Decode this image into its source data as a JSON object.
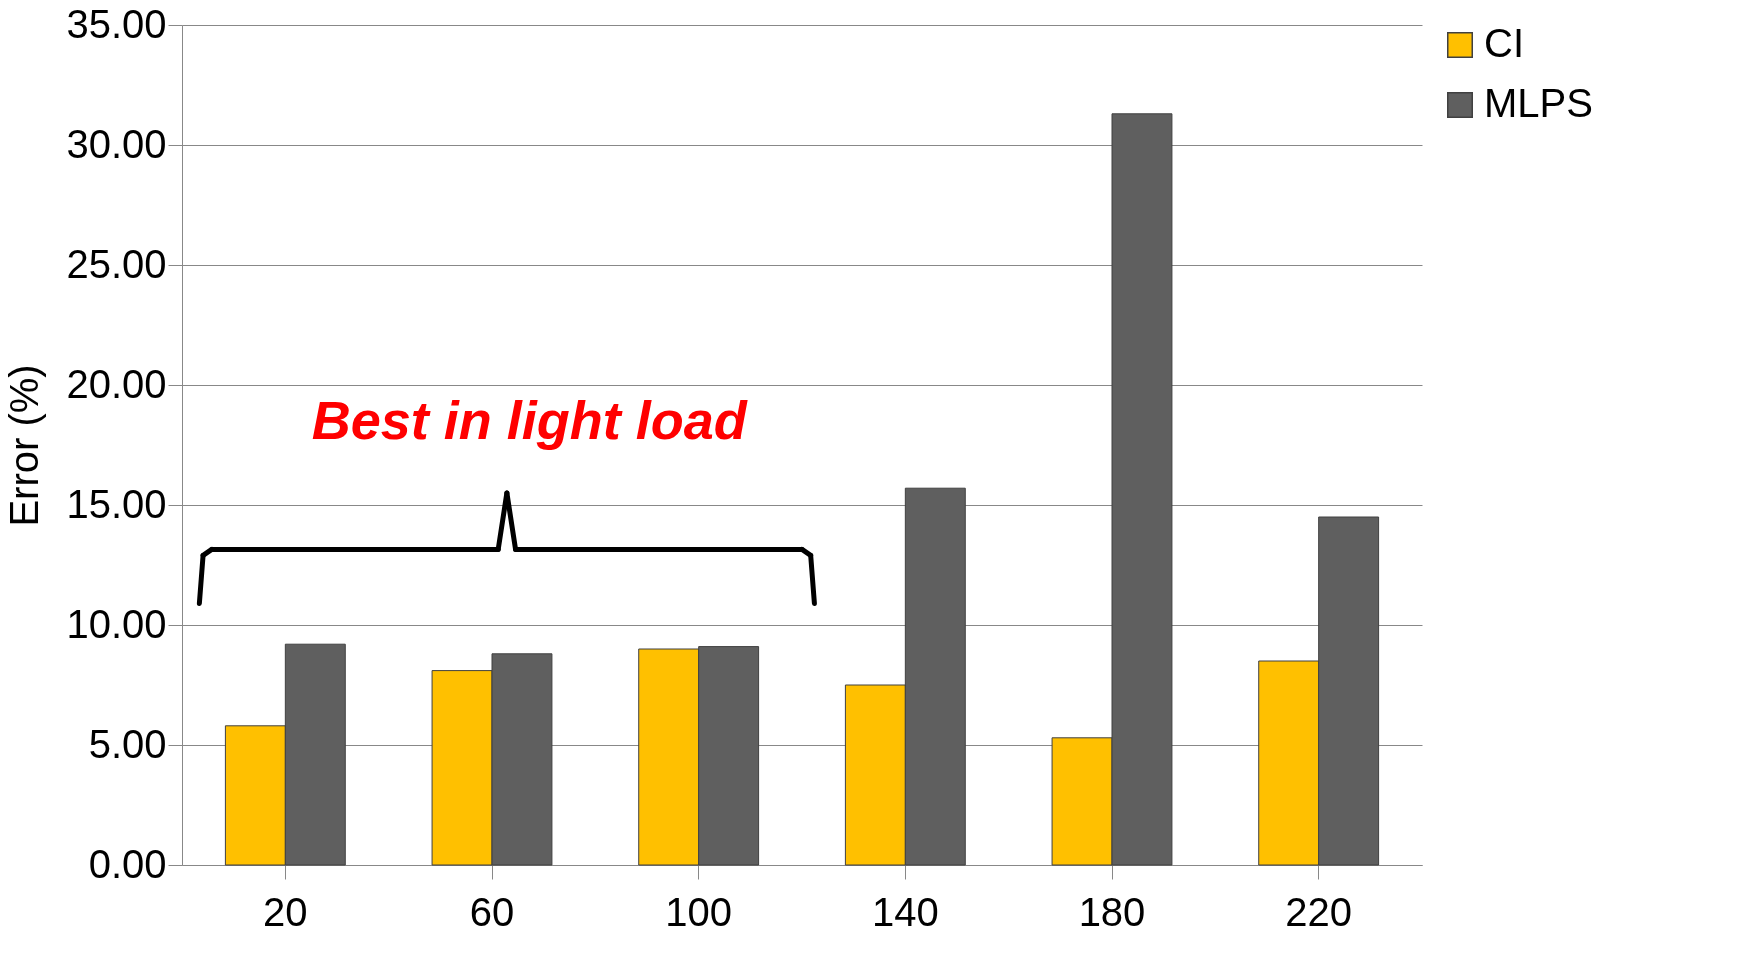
{
  "chart_data": {
    "type": "bar",
    "categories": [
      "20",
      "60",
      "100",
      "140",
      "180",
      "220"
    ],
    "series": [
      {
        "name": "CI",
        "color": "#ffc000",
        "values": [
          5.8,
          8.1,
          9.0,
          7.5,
          5.3,
          8.5
        ]
      },
      {
        "name": "MLPS",
        "color": "#5f5f5f",
        "values": [
          9.2,
          8.8,
          9.1,
          15.7,
          31.3,
          14.5
        ]
      }
    ],
    "ylabel": "Error (%)",
    "ylim": [
      0,
      35
    ],
    "yticks": [
      {
        "value": 0,
        "label": "0.00"
      },
      {
        "value": 5,
        "label": "5.00"
      },
      {
        "value": 10,
        "label": "10.00"
      },
      {
        "value": 15,
        "label": "15.00"
      },
      {
        "value": 20,
        "label": "20.00"
      },
      {
        "value": 25,
        "label": "25.00"
      },
      {
        "value": 30,
        "label": "30.00"
      },
      {
        "value": 35,
        "label": "35.00"
      }
    ],
    "annotations": [
      "Best in light load"
    ],
    "grid": "y",
    "legend": "right"
  }
}
